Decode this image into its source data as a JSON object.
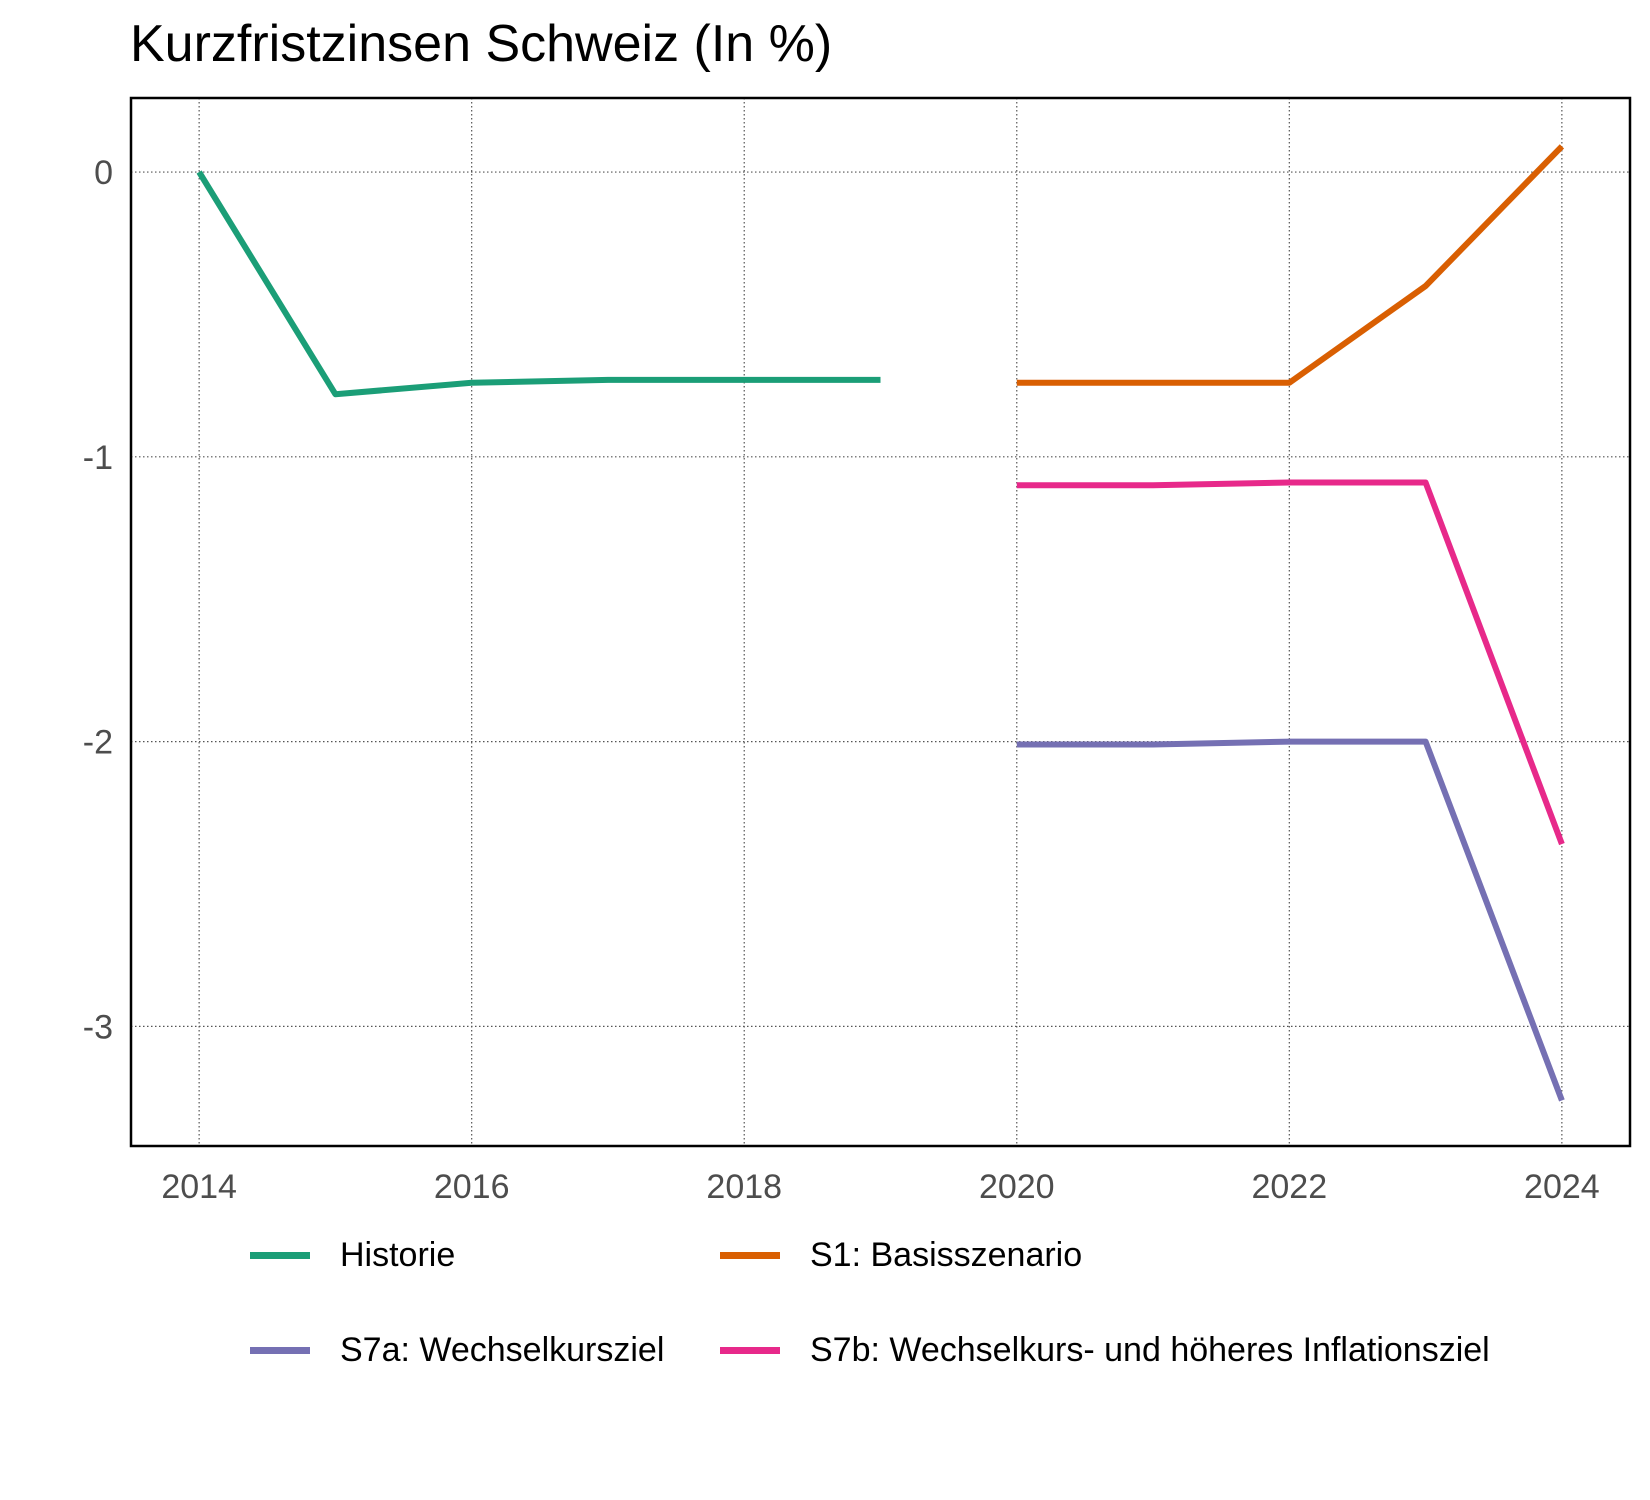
{
  "title": "Kurzfristzinsen Schweiz (In %)",
  "chart_data": {
    "type": "line",
    "title": "Kurzfristzinsen Schweiz (In %)",
    "xlabel": "",
    "ylabel": "",
    "xlim": [
      2013.5,
      2024.5
    ],
    "ylim": [
      -3.42,
      0.26
    ],
    "x_ticks": [
      2014,
      2016,
      2018,
      2020,
      2022,
      2024
    ],
    "y_ticks": [
      0,
      -1,
      -2,
      -3
    ],
    "grid": true,
    "legend_position": "bottom",
    "series": [
      {
        "name": "Historie",
        "color": "#1b9e77",
        "x": [
          2014,
          2015,
          2016,
          2017,
          2018,
          2019
        ],
        "y": [
          0.0,
          -0.78,
          -0.74,
          -0.73,
          -0.73,
          -0.73
        ]
      },
      {
        "name": "S1: Basisszenario",
        "color": "#d95f02",
        "x": [
          2020,
          2021,
          2022,
          2023,
          2024
        ],
        "y": [
          -0.74,
          -0.74,
          -0.74,
          -0.4,
          0.09
        ]
      },
      {
        "name": "S7a: Wechselkursziel",
        "color": "#7570b3",
        "x": [
          2020,
          2021,
          2022,
          2023,
          2024
        ],
        "y": [
          -2.01,
          -2.01,
          -2.0,
          -2.0,
          -3.26
        ]
      },
      {
        "name": "S7b: Wechselkurs- und höheres Inflationsziel",
        "color": "#e7298a",
        "x": [
          2020,
          2021,
          2022,
          2023,
          2024
        ],
        "y": [
          -1.1,
          -1.1,
          -1.09,
          -1.09,
          -2.36
        ]
      }
    ]
  }
}
